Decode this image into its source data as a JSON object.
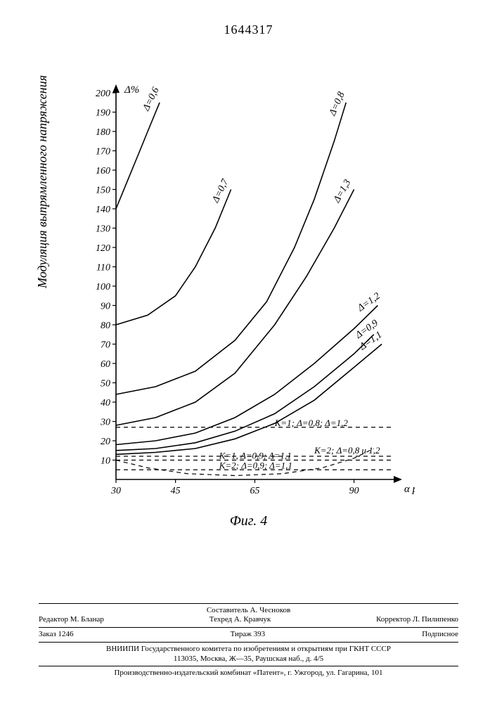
{
  "doc_number": "1644317",
  "chart": {
    "type": "line",
    "y_axis_top_label": "Δ%",
    "y_axis_side_label": "Модуляция выпрямленного напряжения",
    "x_axis_label": "α рег.",
    "caption": "Фиг. 4",
    "xlim": [
      30,
      100
    ],
    "ylim": [
      0,
      200
    ],
    "x_ticks": [
      30,
      45,
      65,
      90
    ],
    "y_ticks": [
      10,
      20,
      30,
      40,
      50,
      60,
      70,
      80,
      90,
      100,
      110,
      120,
      130,
      140,
      150,
      160,
      170,
      180,
      190,
      200
    ],
    "background_color": "#ffffff",
    "axis_color": "#000000",
    "grid_color": "#000000",
    "curve_stroke_width": 1.6,
    "dash_stroke_width": 1.2,
    "dash_pattern": "6,5",
    "solid_curves": [
      {
        "delta": "0,6",
        "label": "Δ=0,6",
        "label_rot": -64,
        "points": [
          [
            30,
            140
          ],
          [
            33,
            155
          ],
          [
            36,
            170
          ],
          [
            38,
            180
          ],
          [
            41,
            195
          ]
        ]
      },
      {
        "delta": "0,7",
        "label": "Δ=0,7",
        "label_rot": -64,
        "points": [
          [
            30,
            80
          ],
          [
            38,
            85
          ],
          [
            45,
            95
          ],
          [
            50,
            110
          ],
          [
            55,
            130
          ],
          [
            59,
            150
          ]
        ]
      },
      {
        "delta": "0,8",
        "label": "Δ=0,8",
        "label_rot": -66,
        "points": [
          [
            30,
            44
          ],
          [
            40,
            48
          ],
          [
            50,
            56
          ],
          [
            60,
            72
          ],
          [
            68,
            92
          ],
          [
            75,
            120
          ],
          [
            80,
            145
          ],
          [
            85,
            175
          ],
          [
            88,
            195
          ]
        ]
      },
      {
        "delta": "1,3",
        "label": "Δ=1,3",
        "label_rot": -60,
        "points": [
          [
            30,
            28
          ],
          [
            40,
            32
          ],
          [
            50,
            40
          ],
          [
            60,
            55
          ],
          [
            70,
            80
          ],
          [
            78,
            105
          ],
          [
            85,
            130
          ],
          [
            90,
            150
          ]
        ]
      },
      {
        "delta": "1,2",
        "label": "Δ=1,2",
        "label_rot": -35,
        "points": [
          [
            30,
            18
          ],
          [
            40,
            20
          ],
          [
            50,
            24
          ],
          [
            60,
            32
          ],
          [
            70,
            44
          ],
          [
            80,
            60
          ],
          [
            90,
            78
          ],
          [
            96,
            90
          ]
        ]
      },
      {
        "delta": "0,9",
        "label": "Δ=0,9",
        "label_rot": -35,
        "points": [
          [
            30,
            15
          ],
          [
            40,
            16
          ],
          [
            50,
            19
          ],
          [
            60,
            25
          ],
          [
            70,
            34
          ],
          [
            80,
            48
          ],
          [
            90,
            65
          ],
          [
            95,
            75
          ]
        ]
      },
      {
        "delta": "1,1",
        "label": "Δ=1,1",
        "label_rot": -35,
        "points": [
          [
            30,
            13
          ],
          [
            40,
            14
          ],
          [
            50,
            16
          ],
          [
            60,
            21
          ],
          [
            70,
            29
          ],
          [
            80,
            41
          ],
          [
            90,
            58
          ],
          [
            97,
            70
          ]
        ]
      }
    ],
    "dashed_lines": [
      {
        "y": 27,
        "label": "К=1;  Δ=0,8; Δ=1,2",
        "label_x": 70
      },
      {
        "y": 12,
        "label": "К=2; Δ=0,8 и 1,2",
        "label_x": 80,
        "label_above": true
      },
      {
        "y": 10,
        "label": "К=1,  Δ=0,9; Δ=1,1",
        "label_x": 56
      },
      {
        "y": 5,
        "label": "К=2;  Δ=0,9;  Δ=1,1",
        "label_x": 56
      }
    ],
    "dashed_curve": {
      "points": [
        [
          30,
          10
        ],
        [
          38,
          6
        ],
        [
          48,
          3
        ],
        [
          60,
          2
        ],
        [
          72,
          3
        ],
        [
          82,
          6
        ],
        [
          90,
          11
        ],
        [
          95,
          16
        ]
      ]
    }
  },
  "footer": {
    "compiler": "Составитель А. Чесноков",
    "editor": "Редактор М. Бланар",
    "tech": "Техред А. Кравчук",
    "corrector": "Корректор Л. Пилипенко",
    "order": "Заказ 1246",
    "tiraj": "Тираж 393",
    "subscript": "Подписное",
    "org1": "ВНИИПИ Государственного комитета по изобретениям и открытиям при ГКНТ СССР",
    "addr1": "113035, Москва, Ж—35, Раушская наб., д. 4/5",
    "org2": "Производственно-издательский комбинат «Патент», г. Ужгород, ул. Гагарина, 101"
  }
}
